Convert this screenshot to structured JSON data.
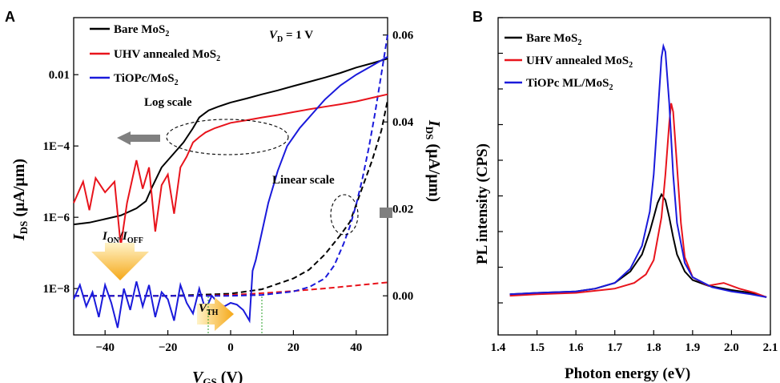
{
  "panels": {
    "a": "A",
    "b": "B"
  },
  "colors": {
    "bare": "#000000",
    "uhv": "#e8141c",
    "tiopc": "#1a1adb",
    "arrow": "#808080",
    "gold": "#f5b21a"
  },
  "chart_data": [
    {
      "type": "line",
      "x_tick_labels": [
        "−40",
        "−20",
        "0",
        "20",
        "40"
      ],
      "x_ticks": [
        -40,
        -20,
        0,
        20,
        40
      ],
      "xlim": [
        -50,
        50
      ],
      "xlabel": {
        "main": "V",
        "sub": "GS",
        "unit": " (V)"
      },
      "ylabel_left": {
        "main": "I",
        "sub": "DS",
        "unit": " (μA/μm)"
      },
      "ylabel_right": {
        "main": "I",
        "sub": "DS",
        "unit": " (μA/μm)"
      },
      "y_left_tick_labels": [
        "0.01",
        "1E−4",
        "1E−6",
        "1E−8"
      ],
      "y_left_ticks_log": [
        -2,
        -4,
        -6,
        -8
      ],
      "y_left_lim_log": [
        -9.3,
        -0.4
      ],
      "y_right_tick_labels": [
        "0.00",
        "0.02",
        "0.04",
        "0.06"
      ],
      "y_right_ticks": [
        0,
        0.02,
        0.04,
        0.06
      ],
      "y_right_lim": [
        -0.009,
        0.064
      ],
      "condition": {
        "main": "V",
        "sub": "D",
        "rest": " = 1 V"
      },
      "annotations": {
        "log_scale": "Log scale",
        "linear_scale": "Linear scale",
        "on_off": {
          "main1": "I",
          "sub1": "ON",
          "sep": "/",
          "main2": "I",
          "sub2": "OFF"
        },
        "vth": {
          "main": "V",
          "sub": "TH"
        }
      },
      "legend": [
        {
          "main": "Bare MoS",
          "sub": "2"
        },
        {
          "main": "UHV annealed MoS",
          "sub": "2"
        },
        {
          "main": "TiOPc/MoS",
          "sub": "2"
        }
      ],
      "series_log": [
        {
          "name": "Bare MoS2",
          "x": [
            -50,
            -45,
            -40,
            -35,
            -30,
            -27,
            -25,
            -22,
            -18,
            -15,
            -12,
            -10,
            -7,
            -4,
            0,
            5,
            10,
            15,
            20,
            25,
            30,
            35,
            40,
            45,
            50
          ],
          "y": [
            -6.2,
            -6.15,
            -6.05,
            -5.95,
            -5.75,
            -5.55,
            -5.15,
            -4.6,
            -4.2,
            -3.9,
            -3.5,
            -3.2,
            -3.0,
            -2.9,
            -2.78,
            -2.67,
            -2.55,
            -2.44,
            -2.32,
            -2.2,
            -2.08,
            -1.95,
            -1.8,
            -1.68,
            -1.55
          ]
        },
        {
          "name": "UHV annealed MoS2",
          "x": [
            -50,
            -47,
            -45,
            -43,
            -40,
            -37,
            -35,
            -33,
            -30,
            -28,
            -26,
            -24,
            -22,
            -20,
            -18,
            -16,
            -14,
            -12,
            -10,
            -8,
            -5,
            0,
            5,
            10,
            15,
            20,
            25,
            30,
            35,
            40,
            45,
            50
          ],
          "y": [
            -5.6,
            -5.0,
            -5.8,
            -4.9,
            -5.3,
            -5.0,
            -6.8,
            -5.6,
            -4.4,
            -5.2,
            -4.6,
            -6.4,
            -5.1,
            -4.8,
            -5.9,
            -4.6,
            -4.3,
            -3.9,
            -3.75,
            -3.62,
            -3.5,
            -3.35,
            -3.28,
            -3.2,
            -3.13,
            -3.05,
            -2.97,
            -2.9,
            -2.83,
            -2.75,
            -2.65,
            -2.55
          ]
        },
        {
          "name": "TiOPc/MoS2",
          "x": [
            -50,
            -48,
            -46,
            -44,
            -42,
            -40,
            -38,
            -36,
            -34,
            -32,
            -30,
            -28,
            -26,
            -24,
            -22,
            -20,
            -18,
            -16,
            -14,
            -12,
            -10,
            -8,
            -6,
            -4,
            -2,
            0,
            2,
            4,
            6,
            7,
            8,
            10,
            12,
            15,
            18,
            22,
            26,
            30,
            35,
            40,
            45,
            50
          ],
          "y": [
            -8.3,
            -7.9,
            -8.5,
            -8.1,
            -8.8,
            -7.9,
            -8.4,
            -9.1,
            -8.0,
            -8.6,
            -7.8,
            -8.5,
            -7.9,
            -8.8,
            -8.1,
            -8.3,
            -8.9,
            -7.9,
            -8.4,
            -8.7,
            -8.0,
            -8.6,
            -8.2,
            -8.4,
            -8.5,
            -8.4,
            -8.45,
            -8.6,
            -8.9,
            -7.5,
            -7.2,
            -6.4,
            -5.6,
            -4.7,
            -4.0,
            -3.5,
            -3.1,
            -2.7,
            -2.3,
            -2.0,
            -1.75,
            -1.5
          ]
        }
      ],
      "series_linear": [
        {
          "name": "Bare MoS2 (linear)",
          "x": [
            -50,
            -20,
            0,
            10,
            20,
            25,
            30,
            35,
            38,
            40,
            42,
            45,
            48,
            50
          ],
          "y": [
            0,
            0,
            0.0005,
            0.0015,
            0.004,
            0.006,
            0.0095,
            0.014,
            0.017,
            0.021,
            0.025,
            0.031,
            0.038,
            0.045
          ]
        },
        {
          "name": "UHV annealed MoS2 (linear)",
          "x": [
            -50,
            -10,
            0,
            10,
            20,
            30,
            40,
            50
          ],
          "y": [
            0,
            0,
            0.0002,
            0.0006,
            0.0011,
            0.0017,
            0.0024,
            0.0031
          ]
        },
        {
          "name": "TiOPc/MoS2 (linear)",
          "x": [
            -50,
            0,
            10,
            20,
            25,
            30,
            33,
            36,
            38,
            40,
            42,
            44,
            46,
            48,
            50
          ],
          "y": [
            0,
            0,
            0.0002,
            0.001,
            0.002,
            0.004,
            0.007,
            0.012,
            0.016,
            0.021,
            0.027,
            0.034,
            0.042,
            0.051,
            0.06
          ]
        }
      ]
    },
    {
      "type": "line",
      "xlabel": "Photon energy (eV)",
      "ylabel": "PL intensity (CPS)",
      "x_tick_labels": [
        "1.4",
        "1.5",
        "1.6",
        "1.7",
        "1.8",
        "1.9",
        "2.0",
        "2.1"
      ],
      "x_ticks": [
        1.4,
        1.5,
        1.6,
        1.7,
        1.8,
        1.9,
        2.0,
        2.1
      ],
      "xlim": [
        1.4,
        2.1
      ],
      "ylim": [
        0,
        1.0
      ],
      "legend": [
        {
          "main": "Bare MoS",
          "sub": "2"
        },
        {
          "main": "UHV annealed MoS",
          "sub": "2"
        },
        {
          "main": "TiOPc ML/MoS",
          "sub": "2"
        }
      ],
      "series": [
        {
          "name": "Bare MoS2",
          "x": [
            1.43,
            1.5,
            1.6,
            1.65,
            1.7,
            1.74,
            1.77,
            1.79,
            1.8,
            1.81,
            1.82,
            1.83,
            1.84,
            1.85,
            1.86,
            1.88,
            1.9,
            1.94,
            2.0,
            2.05,
            2.09
          ],
          "y": [
            0.03,
            0.035,
            0.04,
            0.05,
            0.07,
            0.11,
            0.17,
            0.25,
            0.3,
            0.35,
            0.38,
            0.36,
            0.3,
            0.23,
            0.17,
            0.11,
            0.08,
            0.06,
            0.045,
            0.035,
            0.02
          ]
        },
        {
          "name": "UHV annealed MoS2",
          "x": [
            1.43,
            1.5,
            1.6,
            1.7,
            1.75,
            1.78,
            1.8,
            1.82,
            1.83,
            1.84,
            1.845,
            1.85,
            1.86,
            1.87,
            1.88,
            1.9,
            1.94,
            1.98,
            2.02,
            2.06,
            2.09
          ],
          "y": [
            0.025,
            0.03,
            0.035,
            0.05,
            0.07,
            0.1,
            0.15,
            0.3,
            0.45,
            0.63,
            0.7,
            0.67,
            0.48,
            0.28,
            0.16,
            0.09,
            0.06,
            0.07,
            0.05,
            0.035,
            0.02
          ]
        },
        {
          "name": "TiOPc ML/MoS2",
          "x": [
            1.43,
            1.5,
            1.6,
            1.65,
            1.7,
            1.74,
            1.77,
            1.79,
            1.8,
            1.81,
            1.82,
            1.825,
            1.83,
            1.84,
            1.85,
            1.86,
            1.88,
            1.9,
            1.95,
            2.0,
            2.05,
            2.09
          ],
          "y": [
            0.03,
            0.035,
            0.04,
            0.05,
            0.07,
            0.12,
            0.2,
            0.32,
            0.45,
            0.65,
            0.86,
            0.9,
            0.88,
            0.7,
            0.45,
            0.28,
            0.14,
            0.09,
            0.055,
            0.04,
            0.03,
            0.02
          ]
        }
      ]
    }
  ]
}
